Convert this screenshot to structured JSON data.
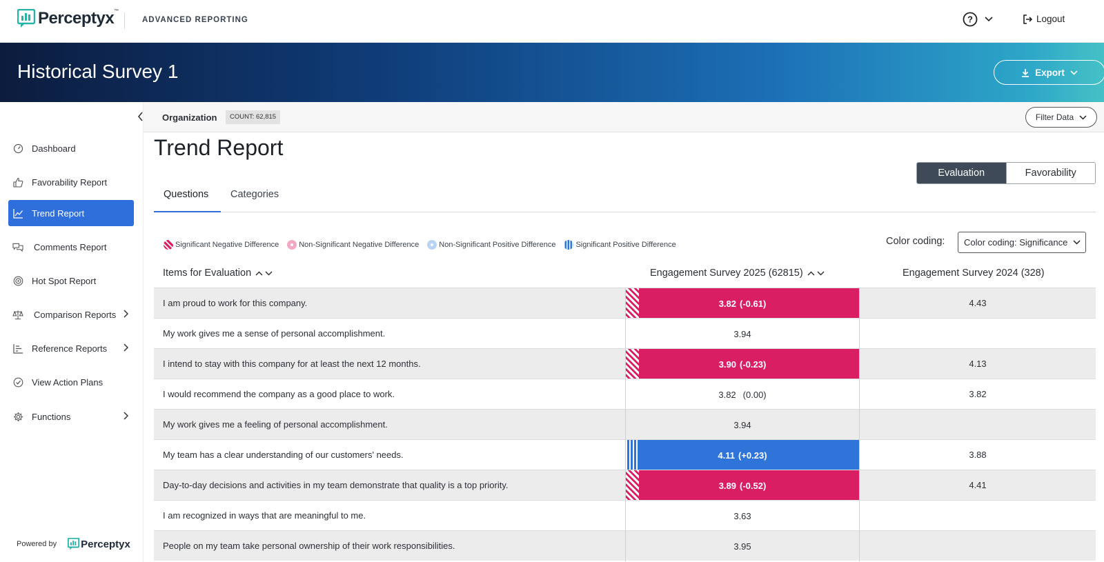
{
  "topbar": {
    "brand": "Perceptyx",
    "brand_tm": "™",
    "app_name": "ADVANCED REPORTING",
    "help_icon": "help-circle-icon",
    "logout_label": "Logout"
  },
  "banner": {
    "title": "Historical Survey 1",
    "export_label": "Export"
  },
  "sidebar": {
    "items": [
      {
        "label": "Dashboard",
        "icon": "speedometer-icon"
      },
      {
        "label": "Favorability Report",
        "icon": "thumbs-up-icon"
      },
      {
        "label": "Trend Report",
        "icon": "line-chart-icon"
      },
      {
        "label": "Comments Report",
        "icon": "comments-icon"
      },
      {
        "label": "Hot Spot Report",
        "icon": "target-icon"
      },
      {
        "label": "Comparison Reports",
        "icon": "scale-icon"
      },
      {
        "label": "Reference Reports",
        "icon": "bar-list-icon"
      },
      {
        "label": "View Action Plans",
        "icon": "check-circle-icon"
      },
      {
        "label": "Functions",
        "icon": "gear-icon"
      }
    ],
    "powered_by": "Powered by",
    "powered_brand": "Perceptyx"
  },
  "orgbar": {
    "label": "Organization",
    "count": "COUNT: 62,815",
    "filter_label": "Filter Data"
  },
  "main": {
    "title": "Trend Report",
    "toggle": {
      "evaluation": "Evaluation",
      "favorability": "Favorability"
    },
    "tabs": [
      "Questions",
      "Categories"
    ],
    "legend": [
      {
        "label": "Significant Negative Difference",
        "color": "#d91e63"
      },
      {
        "label": "Non-Significant Negative Difference",
        "color": "#f3a8c6"
      },
      {
        "label": "Non-Significant Positive Difference",
        "color": "#b9d3f2"
      },
      {
        "label": "Significant Positive Difference",
        "color": "#2f74d9"
      }
    ],
    "color_coding_label": "Color coding:",
    "color_coding_value": "Color coding: Significance"
  },
  "table": {
    "headers": {
      "items": "Items for Evaluation",
      "current": "Engagement Survey 2025 (62815)",
      "previous": "Engagement Survey 2024 (328)"
    },
    "rows": [
      {
        "question": "I am proud to work for this company.",
        "score": "3.82",
        "diff": "(-0.61)",
        "status": "neg",
        "previous": "4.43"
      },
      {
        "question": "My work gives me a sense of personal accomplishment.",
        "score": "3.94",
        "diff": "",
        "status": "neutral",
        "previous": ""
      },
      {
        "question": "I intend to stay with this company for at least the next 12 months.",
        "score": "3.90",
        "diff": "(-0.23)",
        "status": "neg",
        "previous": "4.13"
      },
      {
        "question": "I would recommend the company as a good place to work.",
        "score": "3.82",
        "diff": "(0.00)",
        "status": "nochange",
        "previous": "3.82"
      },
      {
        "question": "My work gives me a feeling of personal accomplishment.",
        "score": "3.94",
        "diff": "",
        "status": "neutral",
        "previous": ""
      },
      {
        "question": "My team has a clear understanding of our customers' needs.",
        "score": "4.11",
        "diff": "(+0.23)",
        "status": "pos",
        "previous": "3.88"
      },
      {
        "question": "Day-to-day decisions and activities in my team demonstrate that quality is a top priority.",
        "score": "3.89",
        "diff": "(-0.52)",
        "status": "neg",
        "previous": "4.41"
      },
      {
        "question": "I am recognized in ways that are meaningful to me.",
        "score": "3.63",
        "diff": "",
        "status": "neutral",
        "previous": ""
      },
      {
        "question": "People on my team take personal ownership of their work responsibilities.",
        "score": "3.95",
        "diff": "",
        "status": "neutral",
        "previous": ""
      }
    ]
  }
}
